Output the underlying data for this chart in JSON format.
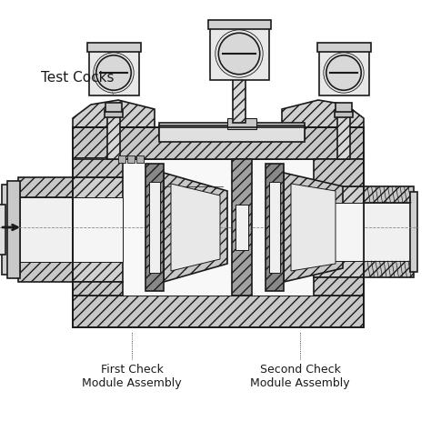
{
  "bg_color": "#ffffff",
  "lc": "#1a1a1a",
  "hatch_fc": "#c0c0c0",
  "wall_fc": "#d8d8d8",
  "inner_fc": "#f5f5f5",
  "dark_fc": "#606060",
  "label_test_cocks": "Test Cocks",
  "label_first": "First Check\nModule Assembly",
  "label_second": "Second Check\nModule Assembly",
  "figsize": [
    4.74,
    4.74
  ],
  "dpi": 100
}
